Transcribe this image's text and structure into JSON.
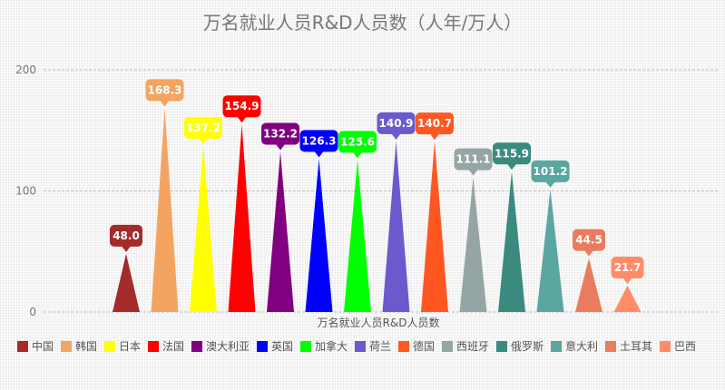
{
  "chart_data": {
    "type": "bar",
    "title": "万名就业人员R&D人员数（人年/万人）",
    "category_label": "万名就业人员R&D人员数",
    "yticks": [
      "0",
      "100",
      "200"
    ],
    "ylim": [
      0,
      200
    ],
    "grid": true,
    "legend_position": "bottom",
    "series": [
      {
        "name": "中国",
        "value": 48.0,
        "label": "48.0",
        "color": "#a52a2a"
      },
      {
        "name": "韩国",
        "value": 168.3,
        "label": "168.3",
        "color": "#f4a460"
      },
      {
        "name": "日本",
        "value": 137.2,
        "label": "137.2",
        "color": "#ffff00"
      },
      {
        "name": "法国",
        "value": 154.9,
        "label": "154.9",
        "color": "#ff0000"
      },
      {
        "name": "澳大利亚",
        "value": 132.2,
        "label": "132.2",
        "color": "#800080"
      },
      {
        "name": "英国",
        "value": 126.3,
        "label": "126.3",
        "color": "#0000ff"
      },
      {
        "name": "加拿大",
        "value": 125.6,
        "label": "125.6",
        "color": "#00ff00"
      },
      {
        "name": "荷兰",
        "value": 140.9,
        "label": "140.9",
        "color": "#6a5acd"
      },
      {
        "name": "德国",
        "value": 140.7,
        "label": "140.7",
        "color": "#ff5722"
      },
      {
        "name": "西班牙",
        "value": 111.1,
        "label": "111.1",
        "color": "#95a5a6"
      },
      {
        "name": "俄罗斯",
        "value": 115.9,
        "label": "115.9",
        "color": "#3b8a80"
      },
      {
        "name": "意大利",
        "value": 101.2,
        "label": "101.2",
        "color": "#5aa6a0"
      },
      {
        "name": "土耳其",
        "value": 44.5,
        "label": "44.5",
        "color": "#e97c5f"
      },
      {
        "name": "巴西",
        "value": 21.7,
        "label": "21.7",
        "color": "#ff8c69"
      }
    ]
  }
}
